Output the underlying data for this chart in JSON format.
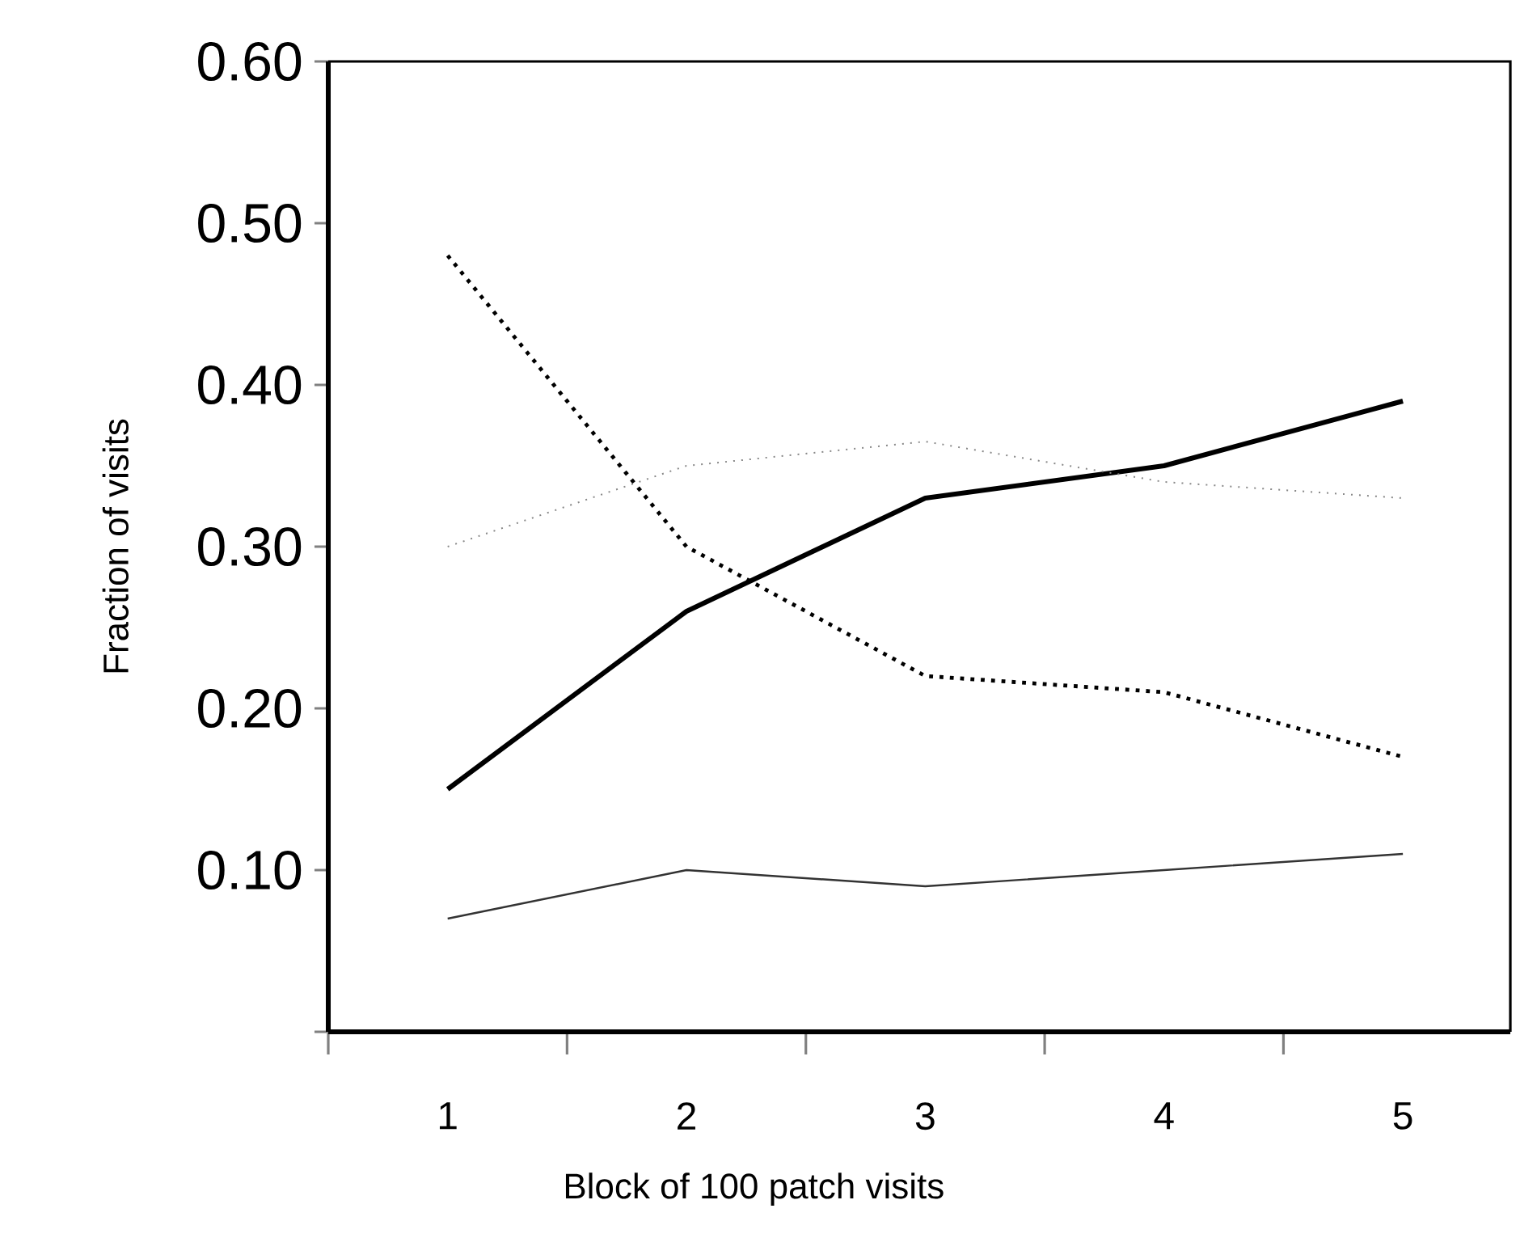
{
  "chart_data": {
    "type": "line",
    "xlabel": "Block of 100 patch visits",
    "ylabel": "Fraction of visits",
    "categories": [
      "1",
      "2",
      "3",
      "4",
      "5"
    ],
    "series": [
      {
        "color": "#000000",
        "line_style": "solid",
        "values": [
          0.15,
          0.26,
          0.33,
          0.35,
          0.39
        ]
      },
      {
        "color": "#333333",
        "line_style": "solid",
        "values": [
          0.07,
          0.1,
          0.09,
          0.1,
          0.11
        ]
      },
      {
        "color": "#000000",
        "line_style": "dotted",
        "values": [
          0.48,
          0.3,
          0.22,
          0.21,
          0.17
        ]
      },
      {
        "color": "#888888",
        "line_style": "dotted",
        "values": [
          0.3,
          0.35,
          0.365,
          0.34,
          0.33
        ]
      }
    ],
    "ylim": [
      0,
      0.6
    ],
    "yticks": [
      {
        "value": 0,
        "label": null
      },
      {
        "value": 0.1,
        "label": "0.10"
      },
      {
        "value": 0.2,
        "label": "0.20"
      },
      {
        "value": 0.3,
        "label": "0.30"
      },
      {
        "value": 0.4,
        "label": "0.40"
      },
      {
        "value": 0.5,
        "label": "0.50"
      },
      {
        "value": 0.6,
        "label": "0.60"
      }
    ],
    "grid": false,
    "marker": "none"
  }
}
